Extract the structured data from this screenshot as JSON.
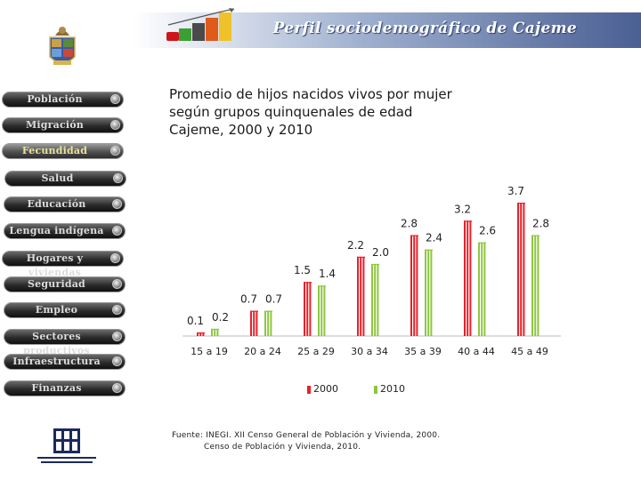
{
  "header": {
    "title": "Perfil sociodemográfico de Cajeme"
  },
  "nav": {
    "items": [
      {
        "label": "Población",
        "active": false
      },
      {
        "label": "Migración",
        "active": false
      },
      {
        "label": "Fecundidad",
        "active": true
      },
      {
        "label": "Salud",
        "active": false
      },
      {
        "label": "Educación",
        "active": false
      },
      {
        "label": "Lengua indígena",
        "active": false
      },
      {
        "label": "Hogares y viviendas",
        "active": false
      },
      {
        "label": "Seguridad",
        "active": false
      },
      {
        "label": "Empleo",
        "active": false
      },
      {
        "label": "Sectores productivos",
        "active": false
      },
      {
        "label": "Infraestructura",
        "active": false
      },
      {
        "label": "Finanzas",
        "active": false
      }
    ]
  },
  "chart_data": {
    "type": "bar",
    "title_lines": [
      "Promedio de hijos nacidos vivos por mujer",
      "según grupos quinquenales de edad",
      "Cajeme, 2000 y 2010"
    ],
    "categories": [
      "15 a 19",
      "20 a 24",
      "25 a 29",
      "30 a 34",
      "35 a 39",
      "40 a 44",
      "45 a 49"
    ],
    "series": [
      {
        "name": "2000",
        "color": "#e8202a",
        "values": [
          0.1,
          0.7,
          1.5,
          2.2,
          2.8,
          3.2,
          3.7
        ]
      },
      {
        "name": "2010",
        "color": "#8ec63f",
        "values": [
          0.2,
          0.7,
          1.4,
          2.0,
          2.4,
          2.6,
          2.8
        ]
      }
    ],
    "ylim": [
      0,
      3.7
    ],
    "grid": false,
    "legend": "bottom"
  },
  "source": {
    "line1": "Fuente: INEGI. XII Censo General de Población y Vivienda, 2000.",
    "line2": "Censo de Población y Vivienda, 2010."
  }
}
